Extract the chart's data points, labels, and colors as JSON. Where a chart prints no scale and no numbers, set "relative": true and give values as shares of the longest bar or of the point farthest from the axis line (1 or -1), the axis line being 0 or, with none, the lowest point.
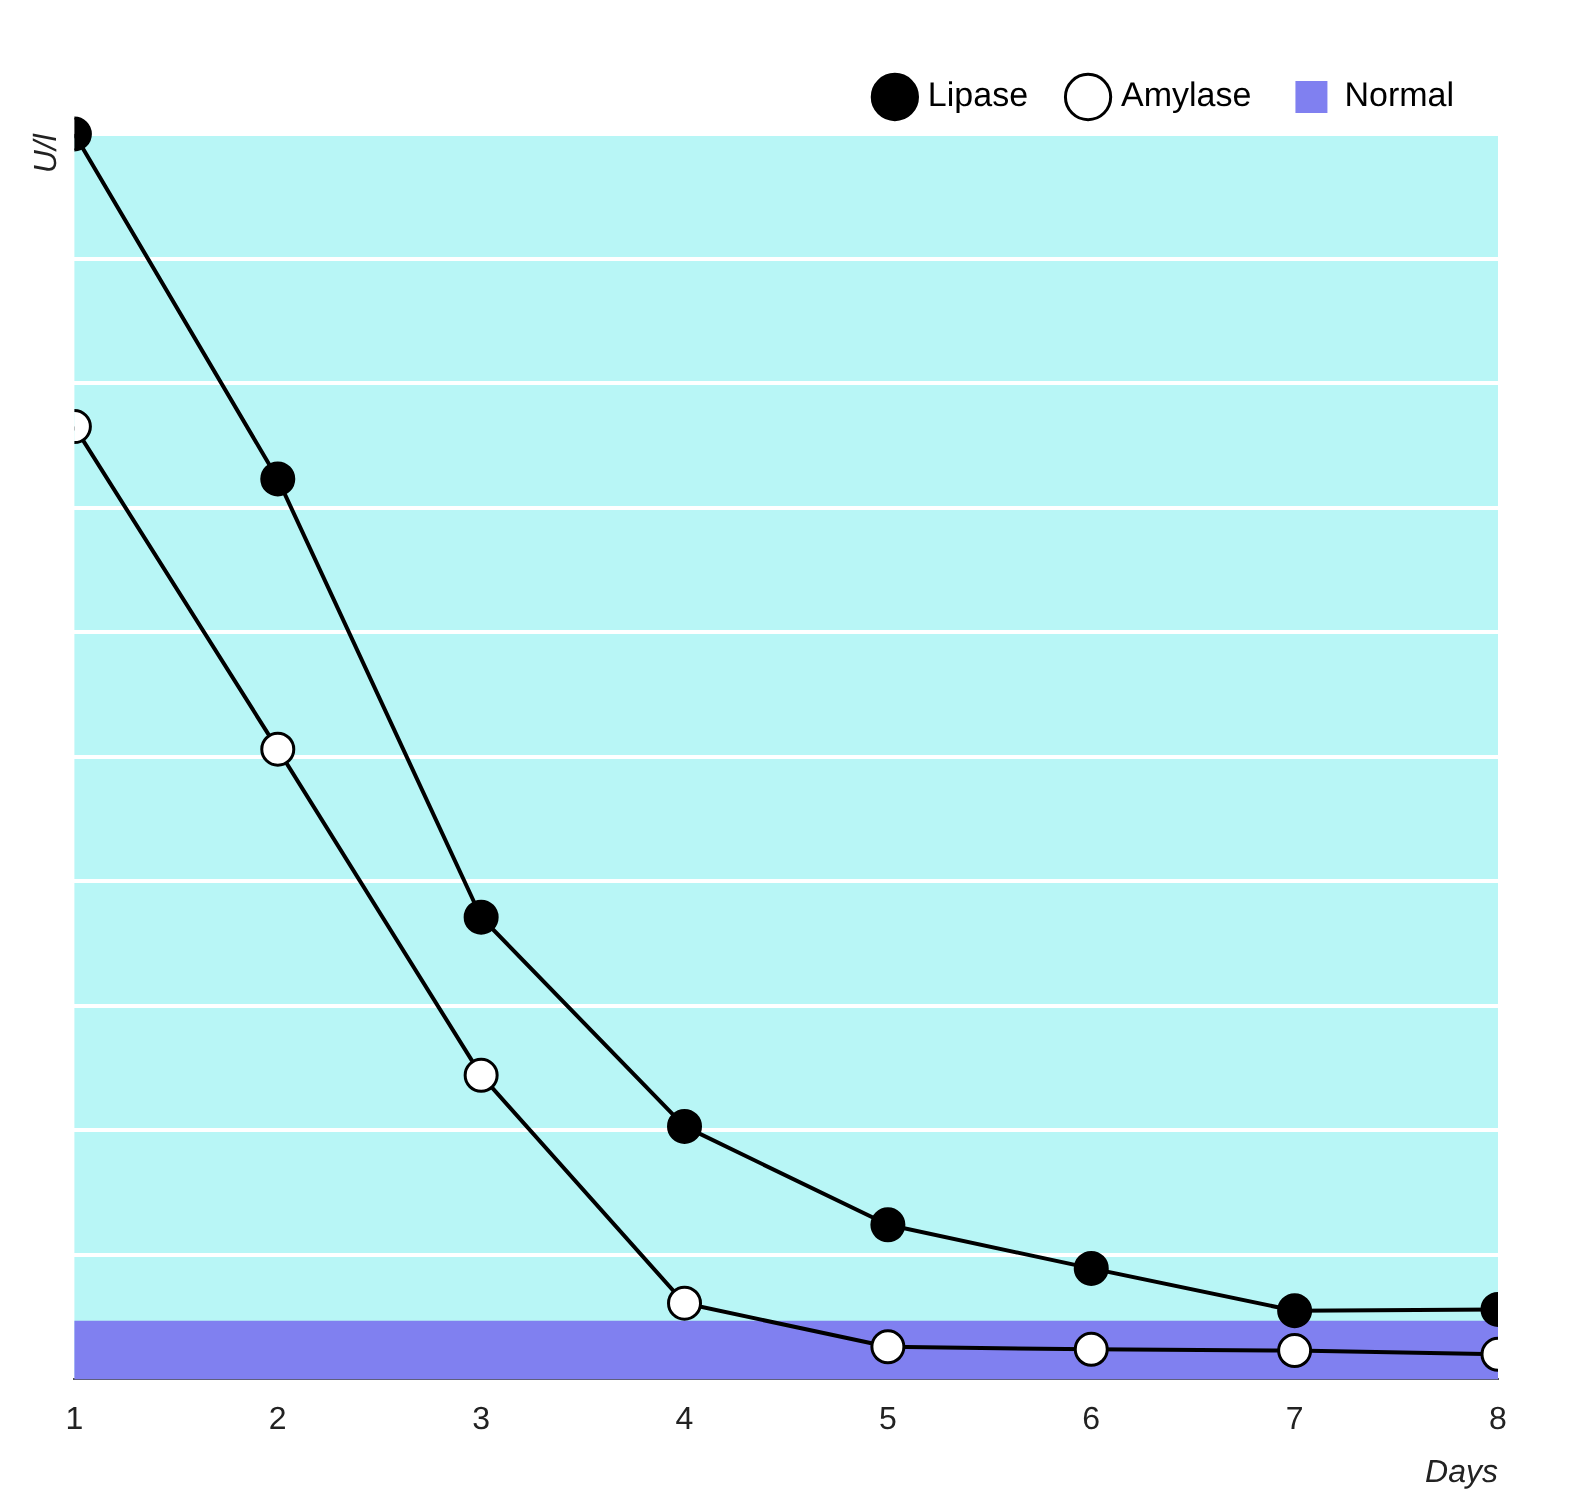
{
  "chart_data": {
    "type": "line",
    "relative": true,
    "xlabel": "Days",
    "ylabel": "U/l",
    "x": [
      1,
      2,
      3,
      4,
      5,
      6,
      7,
      8
    ],
    "xlim": [
      1,
      8
    ],
    "xticks": [
      1,
      2,
      3,
      4,
      5,
      6,
      7,
      8
    ],
    "series": [
      {
        "name": "Lipase",
        "color": "#000000",
        "values": [
          1,
          0.723,
          0.371,
          0.203,
          0.124,
          0.089,
          0.055,
          0.056
        ]
      },
      {
        "name": "Amylase",
        "color": "#000000",
        "values": [
          0.765,
          0.506,
          0.244,
          0.061,
          0.026,
          0.024,
          0.023,
          0.02
        ]
      }
    ],
    "bands": [
      {
        "axis": "y",
        "from": 0,
        "to": 0.047,
        "label": "Normal",
        "color": "#8080f0"
      }
    ],
    "grid": "y",
    "legend": "top right",
    "marker": "circle",
    "line_style": "solid"
  }
}
